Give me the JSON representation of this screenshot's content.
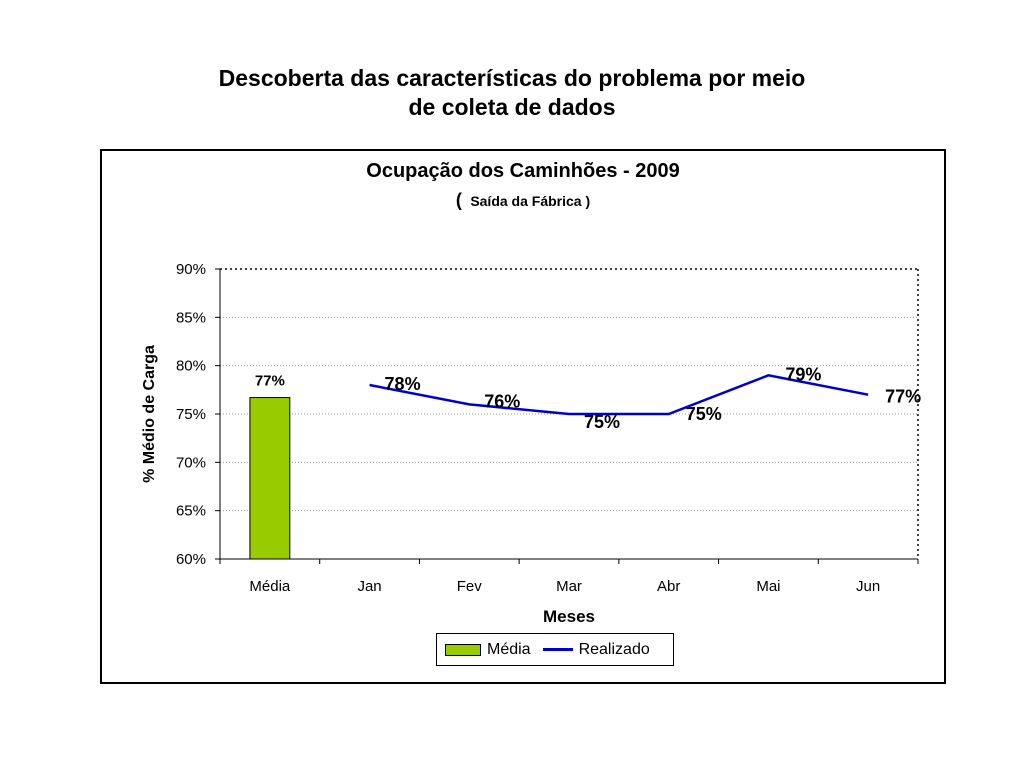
{
  "slide": {
    "title_line1": "Descoberta das características do problema por meio",
    "title_line2": "de coleta de dados"
  },
  "chart_data": {
    "type": "bar+line",
    "title": "Ocupação dos Caminhões  - 2009",
    "subtitle_paren_open": "(",
    "subtitle": "Saída da Fábrica )",
    "xlabel": "Meses",
    "ylabel": "% Médio de Carga",
    "categories": [
      "Média",
      "Jan",
      "Fev",
      "Mar",
      "Abr",
      "Mai",
      "Jun"
    ],
    "ylim": [
      0.6,
      0.9
    ],
    "yticks": [
      0.6,
      0.65,
      0.7,
      0.75,
      0.8,
      0.85,
      0.9
    ],
    "ytick_labels": [
      "60%",
      "65%",
      "70%",
      "75%",
      "80%",
      "85%",
      "90%"
    ],
    "legend_position": "bottom",
    "grid": "horizontal dotted",
    "series": [
      {
        "name": "Média",
        "kind": "bar",
        "color": "#99cc00",
        "points": [
          {
            "category": "Média",
            "value": 0.767,
            "label": "77%"
          }
        ]
      },
      {
        "name": "Realizado",
        "kind": "line",
        "color": "#0000cc",
        "points": [
          {
            "category": "Jan",
            "value": 0.78,
            "label": "78%"
          },
          {
            "category": "Fev",
            "value": 0.76,
            "label": "76%"
          },
          {
            "category": "Mar",
            "value": 0.75,
            "label": "75%"
          },
          {
            "category": "Abr",
            "value": 0.75,
            "label": "75%"
          },
          {
            "category": "Mai",
            "value": 0.79,
            "label": "79%"
          },
          {
            "category": "Jun",
            "value": 0.77,
            "label": "77%"
          }
        ]
      }
    ]
  }
}
